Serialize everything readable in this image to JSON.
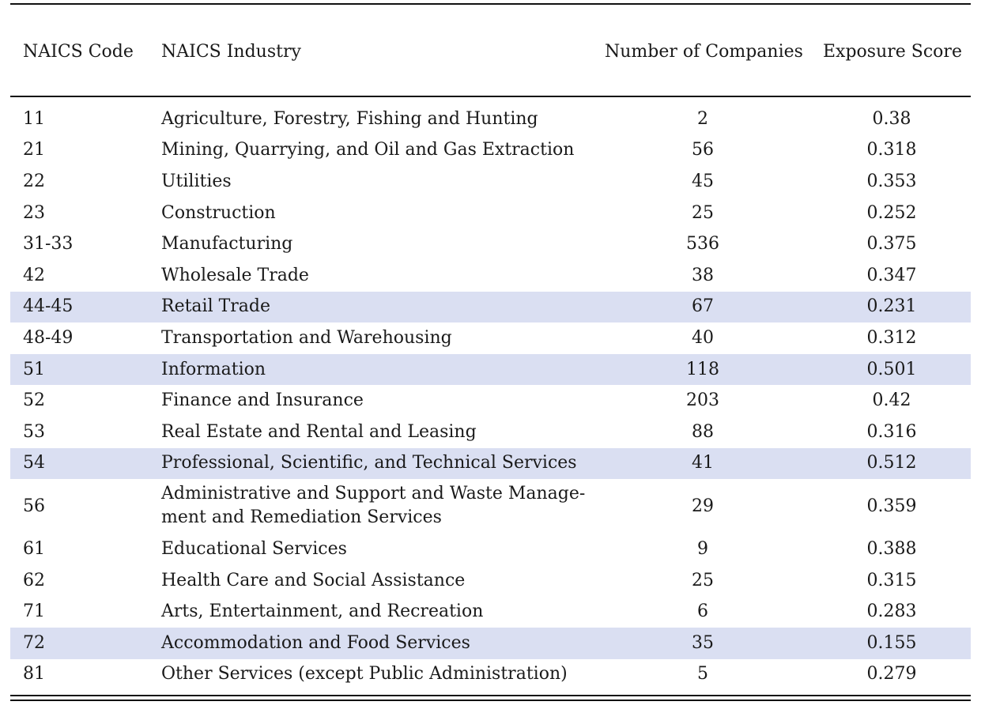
{
  "table": {
    "columns": [
      "NAICS Code",
      "NAICS Industry",
      "Number of Companies",
      "Exposure Score"
    ],
    "rows": [
      {
        "code": "11",
        "industry": "Agriculture, Forestry, Fishing and Hunting",
        "companies": "2",
        "exposure": "0.38",
        "highlight": false
      },
      {
        "code": "21",
        "industry": "Mining, Quarrying, and Oil and Gas Extraction",
        "companies": "56",
        "exposure": "0.318",
        "highlight": false
      },
      {
        "code": "22",
        "industry": "Utilities",
        "companies": "45",
        "exposure": "0.353",
        "highlight": false
      },
      {
        "code": "23",
        "industry": "Construction",
        "companies": "25",
        "exposure": "0.252",
        "highlight": false
      },
      {
        "code": "31-33",
        "industry": "Manufacturing",
        "companies": "536",
        "exposure": "0.375",
        "highlight": false
      },
      {
        "code": "42",
        "industry": "Wholesale Trade",
        "companies": "38",
        "exposure": "0.347",
        "highlight": false
      },
      {
        "code": "44-45",
        "industry": "Retail Trade",
        "companies": "67",
        "exposure": "0.231",
        "highlight": true
      },
      {
        "code": "48-49",
        "industry": "Transportation and Warehousing",
        "companies": "40",
        "exposure": "0.312",
        "highlight": false
      },
      {
        "code": "51",
        "industry": "Information",
        "companies": "118",
        "exposure": "0.501",
        "highlight": true
      },
      {
        "code": "52",
        "industry": "Finance and Insurance",
        "companies": "203",
        "exposure": "0.42",
        "highlight": false
      },
      {
        "code": "53",
        "industry": "Real Estate and Rental and Leasing",
        "companies": "88",
        "exposure": "0.316",
        "highlight": false
      },
      {
        "code": "54",
        "industry": "Professional, Scientific, and Technical Services",
        "companies": "41",
        "exposure": "0.512",
        "highlight": true
      },
      {
        "code": "56",
        "industry": "Administrative and Support and Waste Manage-\nment and Remediation Services",
        "companies": "29",
        "exposure": "0.359",
        "highlight": false
      },
      {
        "code": "61",
        "industry": "Educational Services",
        "companies": "9",
        "exposure": "0.388",
        "highlight": false
      },
      {
        "code": "62",
        "industry": "Health Care and Social Assistance",
        "companies": "25",
        "exposure": "0.315",
        "highlight": false
      },
      {
        "code": "71",
        "industry": "Arts, Entertainment, and Recreation",
        "companies": "6",
        "exposure": "0.283",
        "highlight": false
      },
      {
        "code": "72",
        "industry": "Accommodation and Food Services",
        "companies": "35",
        "exposure": "0.155",
        "highlight": true
      },
      {
        "code": "81",
        "industry": "Other Services (except Public Administration)",
        "companies": "5",
        "exposure": "0.279",
        "highlight": false
      }
    ],
    "highlight_color": "#dadff2"
  }
}
